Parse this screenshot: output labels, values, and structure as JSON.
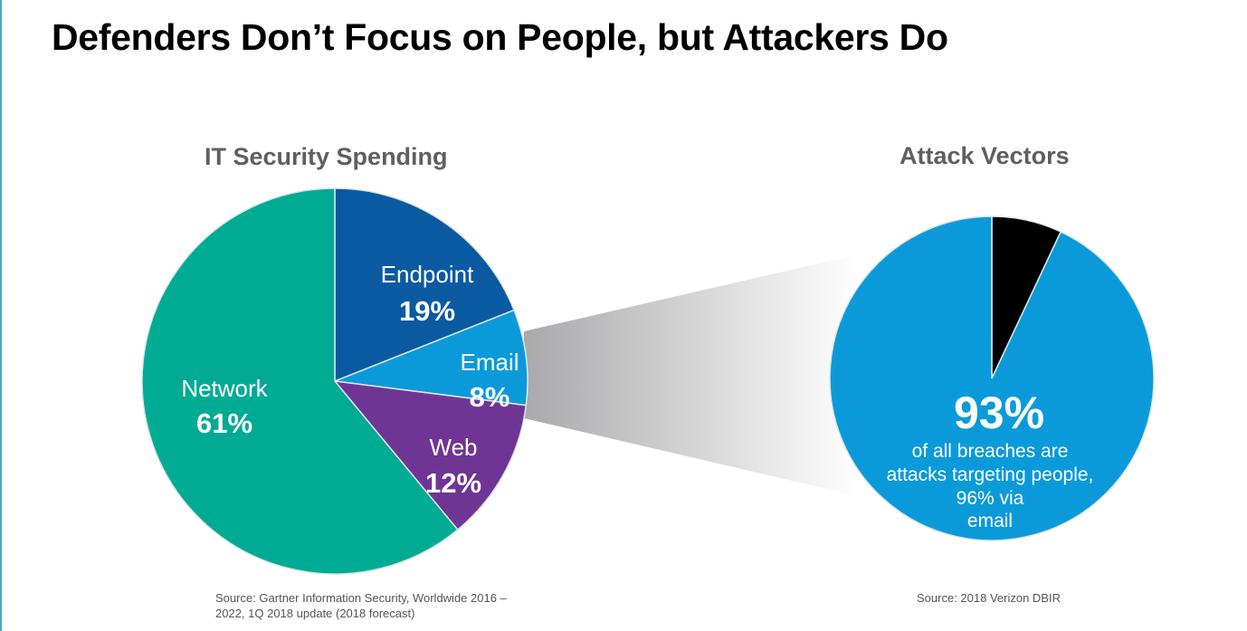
{
  "slide": {
    "title": "Defenders Don’t Focus on People, but Attackers Do"
  },
  "chart_data": [
    {
      "type": "pie",
      "title": "IT Security Spending",
      "slices": [
        {
          "label": "Endpoint",
          "value": 19,
          "display": "19%",
          "color": "#0a5aa1"
        },
        {
          "label": "Email",
          "value": 8,
          "display": "8%",
          "color": "#0b9ad9"
        },
        {
          "label": "Web",
          "value": 12,
          "display": "12%",
          "color": "#6f3595"
        },
        {
          "label": "Network",
          "value": 61,
          "display": "61%",
          "color": "#00ab94"
        }
      ],
      "source": "Source: Gartner Information Security, Worldwide 2016 – 2022, 1Q 2018 update (2018 forecast)"
    },
    {
      "type": "pie",
      "title": "Attack Vectors",
      "slices": [
        {
          "label": "",
          "value": 7,
          "color": "#000000"
        },
        {
          "label": "",
          "value": 93,
          "display": "93%",
          "color": "#0b9ad9"
        }
      ],
      "annotation_lines": [
        "of all breaches are",
        "attacks targeting people,",
        "96% via",
        "email"
      ],
      "source": "Source: 2018 Verizon DBIR"
    }
  ]
}
